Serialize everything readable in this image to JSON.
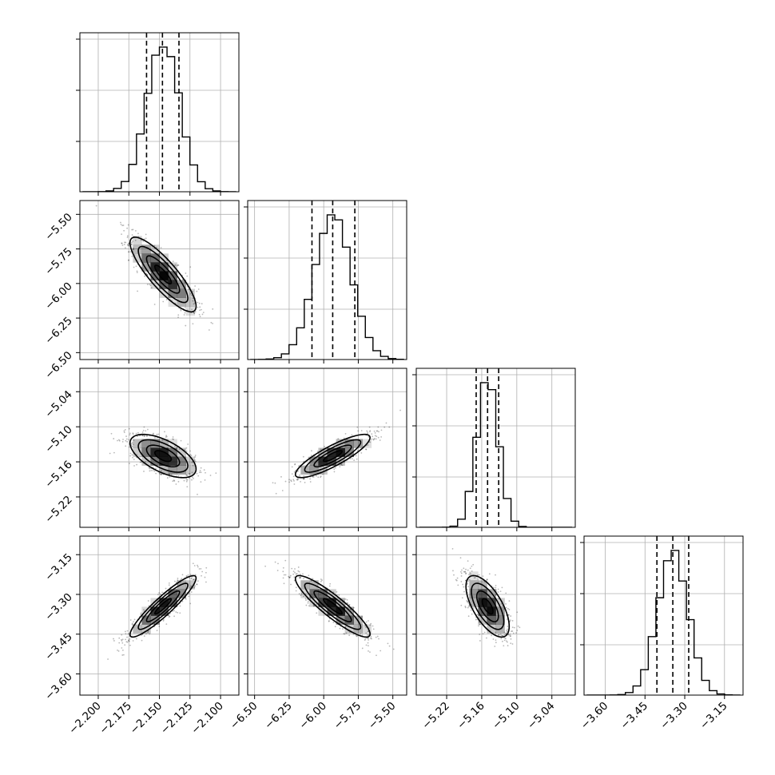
{
  "chart_data": {
    "type": "corner",
    "parameters": [
      {
        "axis_range": [
          -2.215,
          -2.085
        ],
        "tick_values": [
          -2.2,
          -2.175,
          -2.15,
          -2.125,
          -2.1
        ],
        "tick_labels": [
          "−2.200",
          "−2.175",
          "−2.150",
          "−2.125",
          "−2.100"
        ],
        "mean": -2.147,
        "sd": 0.0135,
        "quantiles": [
          -2.1605,
          -2.1475,
          -2.134
        ]
      },
      {
        "axis_range": [
          -6.55,
          -5.4
        ],
        "tick_values": [
          -6.5,
          -6.25,
          -6.0,
          -5.75,
          -5.5
        ],
        "tick_labels": [
          "−6.50",
          "−6.25",
          "−6.00",
          "−5.75",
          "−5.50"
        ],
        "mean": -5.935,
        "sd": 0.135,
        "quantiles": [
          -6.085,
          -5.935,
          -5.775
        ]
      },
      {
        "axis_range": [
          -5.272,
          -5.0
        ],
        "tick_values": [
          -5.22,
          -5.16,
          -5.1,
          -5.04
        ],
        "tick_labels": [
          "−5.22",
          "−5.16",
          "−5.10",
          "−5.04"
        ],
        "mean": -5.15,
        "sd": 0.0185,
        "quantiles": [
          -5.1695,
          -5.15,
          -5.131
        ]
      },
      {
        "axis_range": [
          -3.68,
          -3.08
        ],
        "tick_values": [
          -3.6,
          -3.45,
          -3.3,
          -3.15
        ],
        "tick_labels": [
          "−3.60",
          "−3.45",
          "−3.30",
          "−3.15"
        ],
        "mean": -3.345,
        "sd": 0.058,
        "quantiles": [
          -3.405,
          -3.345,
          -3.285
        ]
      }
    ],
    "correlations": [
      [
        1.0,
        -0.85,
        -0.6,
        0.92
      ],
      [
        -0.85,
        1.0,
        0.85,
        -0.9
      ],
      [
        -0.6,
        0.85,
        1.0,
        -0.65
      ],
      [
        0.92,
        -0.9,
        -0.65,
        1.0
      ]
    ],
    "contour_levels_sigma": [
      0.5,
      1.0,
      1.5,
      2.0
    ],
    "grid": true,
    "colors": {
      "line": "#000000",
      "grid": "#b0b0b0",
      "density": "#000000"
    }
  }
}
